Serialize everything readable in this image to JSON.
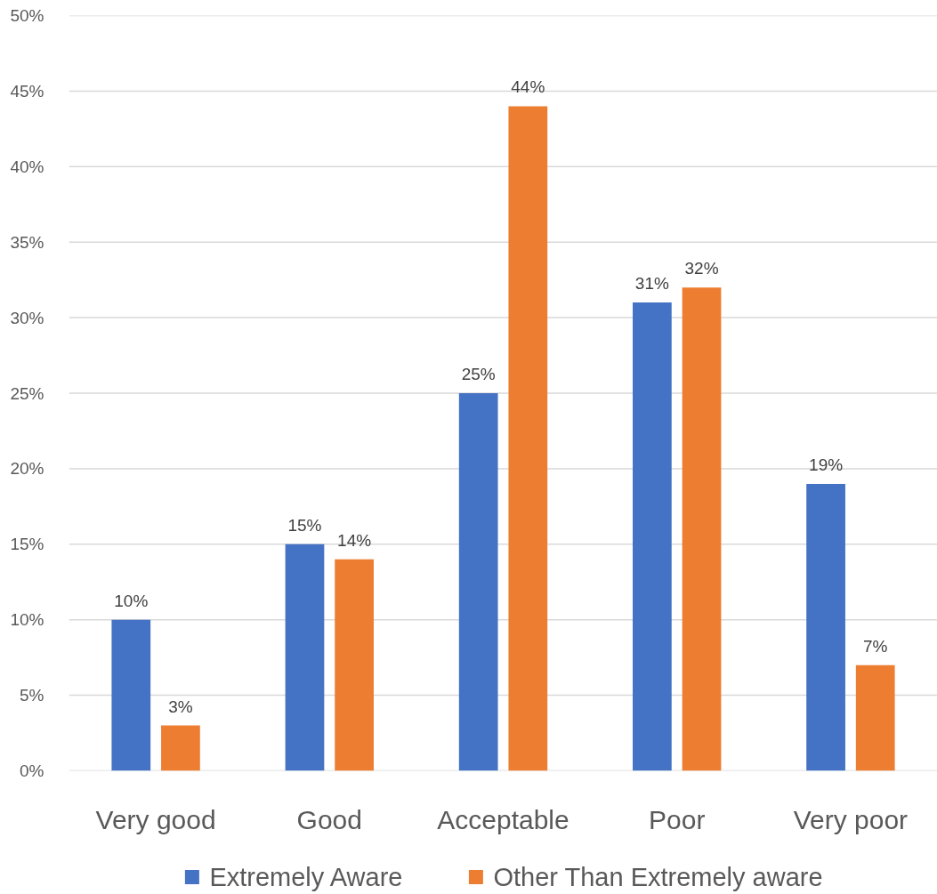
{
  "chart_data": {
    "type": "bar",
    "categories": [
      "Very good",
      "Good",
      "Acceptable",
      "Poor",
      "Very poor"
    ],
    "series": [
      {
        "name": "Extremely Aware",
        "color": "#4472c4",
        "values": [
          10,
          15,
          25,
          31,
          19
        ],
        "value_labels": [
          "10%",
          "15%",
          "25%",
          "31%",
          "19%"
        ]
      },
      {
        "name": "Other Than Extremely aware",
        "color": "#ed7d31",
        "values": [
          3,
          14,
          44,
          32,
          7
        ],
        "value_labels": [
          "3%",
          "14%",
          "44%",
          "32%",
          "7%"
        ]
      }
    ],
    "ylim": [
      0,
      50
    ],
    "yticks": [
      {
        "value": 0,
        "label": "0%"
      },
      {
        "value": 5,
        "label": "5%"
      },
      {
        "value": 10,
        "label": "10%"
      },
      {
        "value": 15,
        "label": "15%"
      },
      {
        "value": 20,
        "label": "20%"
      },
      {
        "value": 25,
        "label": "25%"
      },
      {
        "value": 30,
        "label": "30%"
      },
      {
        "value": 35,
        "label": "35%"
      },
      {
        "value": 40,
        "label": "40%"
      },
      {
        "value": 45,
        "label": "45%"
      },
      {
        "value": 50,
        "label": "50%"
      }
    ],
    "grid": "y",
    "legend": "bottom"
  }
}
